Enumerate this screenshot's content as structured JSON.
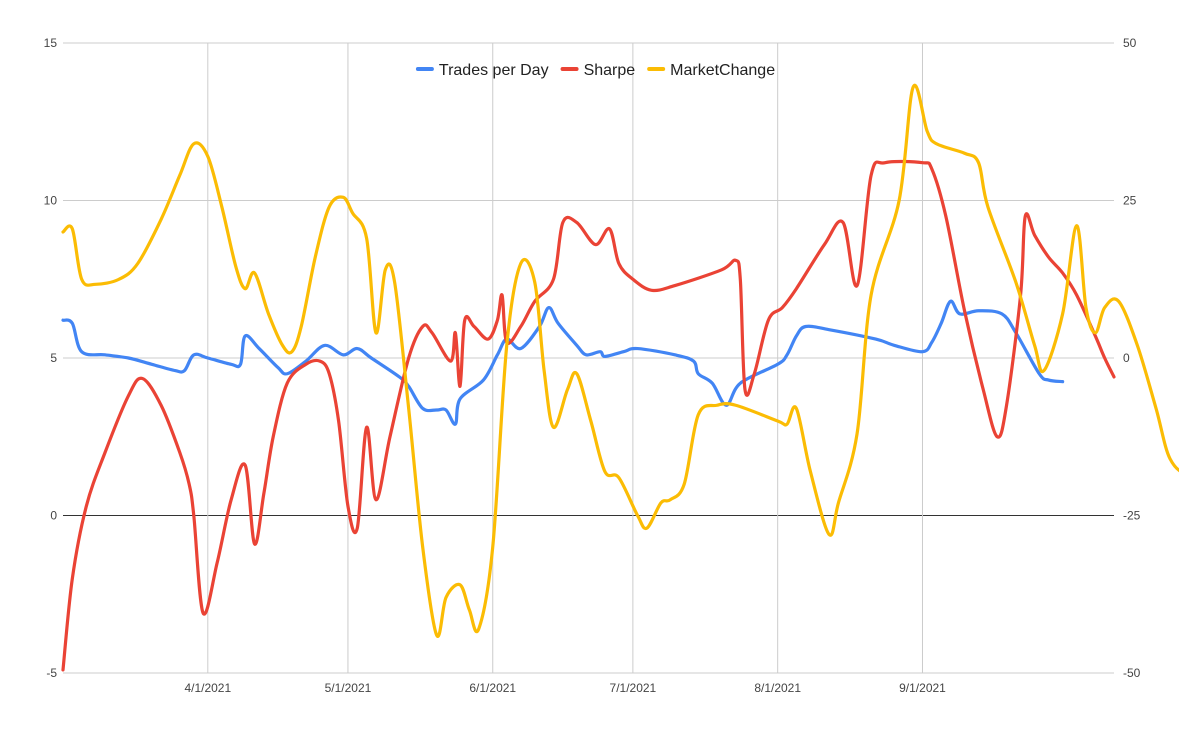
{
  "chart_data": {
    "type": "line",
    "x_axis": {
      "ticks": [
        "4/1/2021",
        "5/1/2021",
        "6/1/2021",
        "7/1/2021",
        "8/1/2021",
        "9/1/2021"
      ]
    },
    "y_left": {
      "range": [
        -5,
        15
      ],
      "ticks": [
        "-5",
        "0",
        "5",
        "10",
        "15"
      ]
    },
    "y_right": {
      "range": [
        -50,
        50
      ],
      "ticks": [
        "-50",
        "-25",
        "0",
        "25",
        "50"
      ]
    },
    "grid": true,
    "legend": {
      "position": "top-center"
    },
    "series": [
      {
        "name": "Trades per Day",
        "axis": "left",
        "color": "#4285f4",
        "points": [
          [
            "2021-03-01",
            6.2
          ],
          [
            "2021-03-03",
            6.1
          ],
          [
            "2021-03-05",
            5.2
          ],
          [
            "2021-03-10",
            5.1
          ],
          [
            "2021-03-15",
            5.0
          ],
          [
            "2021-03-20",
            4.8
          ],
          [
            "2021-03-25",
            4.6
          ],
          [
            "2021-03-27",
            4.6
          ],
          [
            "2021-03-29",
            5.1
          ],
          [
            "2021-04-01",
            5.0
          ],
          [
            "2021-04-06",
            4.8
          ],
          [
            "2021-04-08",
            4.8
          ],
          [
            "2021-04-09",
            5.7
          ],
          [
            "2021-04-12",
            5.3
          ],
          [
            "2021-04-16",
            4.7
          ],
          [
            "2021-04-18",
            4.5
          ],
          [
            "2021-04-22",
            4.9
          ],
          [
            "2021-04-26",
            5.4
          ],
          [
            "2021-04-30",
            5.1
          ],
          [
            "2021-05-03",
            5.3
          ],
          [
            "2021-05-06",
            5.0
          ],
          [
            "2021-05-12",
            4.4
          ],
          [
            "2021-05-14",
            4.1
          ],
          [
            "2021-05-17",
            3.4
          ],
          [
            "2021-05-20",
            3.35
          ],
          [
            "2021-05-22",
            3.35
          ],
          [
            "2021-05-24",
            2.9
          ],
          [
            "2021-05-25",
            3.7
          ],
          [
            "2021-05-30",
            4.3
          ],
          [
            "2021-06-02",
            5.1
          ],
          [
            "2021-06-04",
            5.6
          ],
          [
            "2021-06-07",
            5.3
          ],
          [
            "2021-06-11",
            6.0
          ],
          [
            "2021-06-13",
            6.6
          ],
          [
            "2021-06-15",
            6.1
          ],
          [
            "2021-06-19",
            5.4
          ],
          [
            "2021-06-21",
            5.1
          ],
          [
            "2021-06-24",
            5.2
          ],
          [
            "2021-06-25",
            5.05
          ],
          [
            "2021-06-29",
            5.2
          ],
          [
            "2021-07-02",
            5.3
          ],
          [
            "2021-07-10",
            5.1
          ],
          [
            "2021-07-14",
            4.9
          ],
          [
            "2021-07-15",
            4.5
          ],
          [
            "2021-07-18",
            4.2
          ],
          [
            "2021-07-21",
            3.5
          ],
          [
            "2021-07-24",
            4.2
          ],
          [
            "2021-08-01",
            4.8
          ],
          [
            "2021-08-03",
            5.1
          ],
          [
            "2021-08-05",
            5.7
          ],
          [
            "2021-08-07",
            6.0
          ],
          [
            "2021-08-12",
            5.9
          ],
          [
            "2021-08-22",
            5.6
          ],
          [
            "2021-08-26",
            5.4
          ],
          [
            "2021-09-01",
            5.2
          ],
          [
            "2021-09-03",
            5.5
          ],
          [
            "2021-09-05",
            6.1
          ],
          [
            "2021-09-07",
            6.8
          ],
          [
            "2021-09-09",
            6.4
          ],
          [
            "2021-09-13",
            6.5
          ],
          [
            "2021-09-18",
            6.4
          ],
          [
            "2021-09-21",
            5.8
          ],
          [
            "2021-09-26",
            4.5
          ],
          [
            "2021-09-28",
            4.3
          ],
          [
            "2021-10-01",
            4.25
          ]
        ]
      },
      {
        "name": "Sharpe",
        "axis": "left",
        "color": "#ea4335",
        "points": [
          [
            "2021-03-01",
            -4.9
          ],
          [
            "2021-03-03",
            -2.0
          ],
          [
            "2021-03-06",
            0.3
          ],
          [
            "2021-03-10",
            2.0
          ],
          [
            "2021-03-15",
            3.8
          ],
          [
            "2021-03-18",
            4.35
          ],
          [
            "2021-03-22",
            3.5
          ],
          [
            "2021-03-26",
            2.0
          ],
          [
            "2021-03-28",
            1.0
          ],
          [
            "2021-03-29",
            0.0
          ],
          [
            "2021-03-31",
            -3.1
          ],
          [
            "2021-04-03",
            -1.5
          ],
          [
            "2021-04-06",
            0.5
          ],
          [
            "2021-04-09",
            1.6
          ],
          [
            "2021-04-11",
            -0.9
          ],
          [
            "2021-04-13",
            0.7
          ],
          [
            "2021-04-15",
            2.5
          ],
          [
            "2021-04-18",
            4.2
          ],
          [
            "2021-04-22",
            4.8
          ],
          [
            "2021-04-25",
            4.9
          ],
          [
            "2021-04-27",
            4.5
          ],
          [
            "2021-04-29",
            3.0
          ],
          [
            "2021-05-01",
            0.3
          ],
          [
            "2021-05-03",
            -0.4
          ],
          [
            "2021-05-05",
            2.8
          ],
          [
            "2021-05-07",
            0.5
          ],
          [
            "2021-05-10",
            2.5
          ],
          [
            "2021-05-14",
            5.0
          ],
          [
            "2021-05-17",
            6.0
          ],
          [
            "2021-05-19",
            5.8
          ],
          [
            "2021-05-23",
            4.9
          ],
          [
            "2021-05-24",
            5.8
          ],
          [
            "2021-05-25",
            4.1
          ],
          [
            "2021-05-26",
            6.2
          ],
          [
            "2021-05-28",
            6.0
          ],
          [
            "2021-05-31",
            5.6
          ],
          [
            "2021-06-02",
            6.2
          ],
          [
            "2021-06-03",
            7.0
          ],
          [
            "2021-06-04",
            5.5
          ],
          [
            "2021-06-07",
            6.0
          ],
          [
            "2021-06-10",
            6.8
          ],
          [
            "2021-06-14",
            7.5
          ],
          [
            "2021-06-16",
            9.3
          ],
          [
            "2021-06-19",
            9.3
          ],
          [
            "2021-06-23",
            8.6
          ],
          [
            "2021-06-26",
            9.1
          ],
          [
            "2021-06-28",
            8.0
          ],
          [
            "2021-07-01",
            7.5
          ],
          [
            "2021-07-05",
            7.15
          ],
          [
            "2021-07-10",
            7.3
          ],
          [
            "2021-07-20",
            7.8
          ],
          [
            "2021-07-23",
            8.1
          ],
          [
            "2021-07-24",
            7.5
          ],
          [
            "2021-07-25",
            4.0
          ],
          [
            "2021-07-27",
            4.5
          ],
          [
            "2021-07-30",
            6.2
          ],
          [
            "2021-08-02",
            6.6
          ],
          [
            "2021-08-05",
            7.2
          ],
          [
            "2021-08-11",
            8.6
          ],
          [
            "2021-08-15",
            9.3
          ],
          [
            "2021-08-18",
            7.3
          ],
          [
            "2021-08-21",
            10.8
          ],
          [
            "2021-08-24",
            11.2
          ],
          [
            "2021-09-01",
            11.2
          ],
          [
            "2021-09-03",
            11.0
          ],
          [
            "2021-09-06",
            9.5
          ],
          [
            "2021-09-10",
            6.5
          ],
          [
            "2021-09-14",
            4.0
          ],
          [
            "2021-09-17",
            2.5
          ],
          [
            "2021-09-19",
            3.5
          ],
          [
            "2021-09-22",
            7.0
          ],
          [
            "2021-09-23",
            9.5
          ],
          [
            "2021-09-25",
            8.9
          ],
          [
            "2021-09-28",
            8.2
          ],
          [
            "2021-10-01",
            7.7
          ],
          [
            "2021-10-04",
            7.0
          ],
          [
            "2021-10-08",
            5.7
          ],
          [
            "2021-10-10",
            5.0
          ],
          [
            "2021-10-12",
            4.4
          ]
        ]
      },
      {
        "name": "MarketChange",
        "axis": "right",
        "color": "#fbbc04",
        "points": [
          [
            "2021-03-01",
            20
          ],
          [
            "2021-03-03",
            20.5
          ],
          [
            "2021-03-05",
            12.5
          ],
          [
            "2021-03-08",
            11.7
          ],
          [
            "2021-03-13",
            12.5
          ],
          [
            "2021-03-17",
            15.0
          ],
          [
            "2021-03-22",
            22.0
          ],
          [
            "2021-03-26",
            29.0
          ],
          [
            "2021-03-29",
            34.0
          ],
          [
            "2021-04-01",
            32.0
          ],
          [
            "2021-04-04",
            24.0
          ],
          [
            "2021-04-07",
            14.5
          ],
          [
            "2021-04-09",
            11.0
          ],
          [
            "2021-04-11",
            13.5
          ],
          [
            "2021-04-14",
            7.0
          ],
          [
            "2021-04-17",
            2.0
          ],
          [
            "2021-04-19",
            1.0
          ],
          [
            "2021-04-21",
            5.0
          ],
          [
            "2021-04-24",
            16.0
          ],
          [
            "2021-04-27",
            24.0
          ],
          [
            "2021-04-30",
            25.5
          ],
          [
            "2021-05-02",
            23.0
          ],
          [
            "2021-05-05",
            19.0
          ],
          [
            "2021-05-07",
            4.0
          ],
          [
            "2021-05-09",
            14.0
          ],
          [
            "2021-05-11",
            12.0
          ],
          [
            "2021-05-14",
            -8.0
          ],
          [
            "2021-05-17",
            -30.0
          ],
          [
            "2021-05-20",
            -44.0
          ],
          [
            "2021-05-22",
            -38.0
          ],
          [
            "2021-05-25",
            -36.0
          ],
          [
            "2021-05-27",
            -40.0
          ],
          [
            "2021-05-29",
            -43.0
          ],
          [
            "2021-06-01",
            -30.0
          ],
          [
            "2021-06-04",
            2.0
          ],
          [
            "2021-06-07",
            15.0
          ],
          [
            "2021-06-10",
            12.0
          ],
          [
            "2021-06-12",
            -2.0
          ],
          [
            "2021-06-14",
            -11.0
          ],
          [
            "2021-06-17",
            -5.0
          ],
          [
            "2021-06-19",
            -2.5
          ],
          [
            "2021-06-22",
            -10.0
          ],
          [
            "2021-06-25",
            -18.0
          ],
          [
            "2021-06-28",
            -19.0
          ],
          [
            "2021-07-02",
            -25.0
          ],
          [
            "2021-07-04",
            -27.0
          ],
          [
            "2021-07-07",
            -23.0
          ],
          [
            "2021-07-09",
            -22.5
          ],
          [
            "2021-07-12",
            -20.0
          ],
          [
            "2021-07-15",
            -9.0
          ],
          [
            "2021-07-19",
            -7.5
          ],
          [
            "2021-07-23",
            -7.5
          ],
          [
            "2021-08-01",
            -10.0
          ],
          [
            "2021-08-03",
            -10.5
          ],
          [
            "2021-08-05",
            -8.0
          ],
          [
            "2021-08-08",
            -18.0
          ],
          [
            "2021-08-12",
            -28.0
          ],
          [
            "2021-08-14",
            -23.0
          ],
          [
            "2021-08-18",
            -12.0
          ],
          [
            "2021-08-21",
            10.0
          ],
          [
            "2021-08-27",
            25.0
          ],
          [
            "2021-08-30",
            43.0
          ],
          [
            "2021-09-02",
            36.0
          ],
          [
            "2021-09-04",
            34.0
          ],
          [
            "2021-09-10",
            32.5
          ],
          [
            "2021-09-13",
            31.0
          ],
          [
            "2021-09-15",
            24.0
          ],
          [
            "2021-09-21",
            12.0
          ],
          [
            "2021-09-25",
            2.0
          ],
          [
            "2021-09-27",
            -2.0
          ],
          [
            "2021-10-01",
            7.0
          ],
          [
            "2021-10-04",
            21.0
          ],
          [
            "2021-10-06",
            8.0
          ],
          [
            "2021-10-08",
            4.0
          ],
          [
            "2021-10-10",
            8.0
          ],
          [
            "2021-10-13",
            9.0
          ],
          [
            "2021-10-17",
            2.0
          ],
          [
            "2021-10-21",
            -8.0
          ],
          [
            "2021-10-24",
            -16.0
          ],
          [
            "2021-10-28",
            -18.0
          ],
          [
            "2021-10-31",
            -12.0
          ]
        ]
      }
    ]
  }
}
